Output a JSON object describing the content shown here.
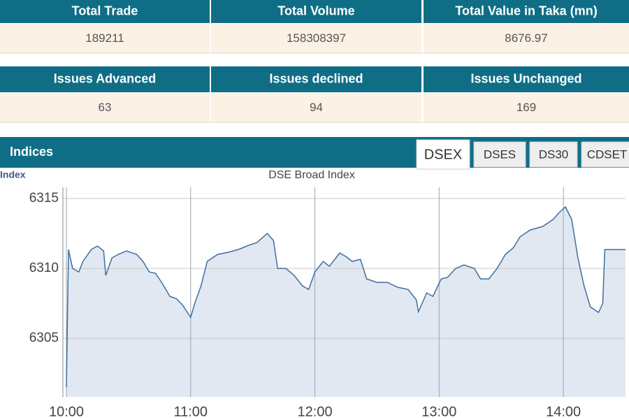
{
  "tables": [
    {
      "headers": [
        "Total Trade",
        "Total Volume",
        "Total Value in Taka (mn)"
      ],
      "values": [
        189211,
        158308397,
        8676.97
      ]
    },
    {
      "headers": [
        "Issues Advanced",
        "Issues declined",
        "Issues Unchanged"
      ],
      "values": [
        63,
        94,
        169
      ]
    }
  ],
  "section_title": "Indices",
  "tabs": [
    "DSEX",
    "DSES",
    "DS30",
    "CDSET"
  ],
  "chart_data": {
    "type": "line",
    "title": "DSE Broad Index",
    "y_label": "Index",
    "x": [
      "10:00",
      "10:01",
      "10:03",
      "10:06",
      "10:08",
      "10:12",
      "10:15",
      "10:18",
      "10:19",
      "10:22",
      "10:25",
      "10:29",
      "10:34",
      "10:37",
      "10:40",
      "10:43",
      "10:46",
      "10:50",
      "10:53",
      "10:56",
      "11:00",
      "11:02",
      "11:05",
      "11:08",
      "11:13",
      "11:18",
      "11:23",
      "11:28",
      "11:32",
      "11:37",
      "11:40",
      "11:42",
      "11:46",
      "11:50",
      "11:54",
      "11:57",
      "12:00",
      "12:04",
      "12:07",
      "12:12",
      "12:15",
      "12:18",
      "12:22",
      "12:25",
      "12:30",
      "12:35",
      "12:40",
      "12:45",
      "12:49",
      "12:50",
      "12:54",
      "12:57",
      "13:01",
      "13:04",
      "13:08",
      "13:12",
      "13:17",
      "13:20",
      "13:24",
      "13:28",
      "13:32",
      "13:36",
      "13:39",
      "13:44",
      "13:50",
      "13:55",
      "13:58",
      "14:01",
      "14:04",
      "14:07",
      "14:10",
      "14:13",
      "14:17",
      "14:19",
      "14:20",
      "14:30"
    ],
    "values": [
      6301.5,
      6311.35,
      6310.0,
      6309.75,
      6310.5,
      6311.35,
      6311.6,
      6311.25,
      6309.5,
      6310.75,
      6311.0,
      6311.25,
      6311.0,
      6310.5,
      6309.75,
      6309.65,
      6309.0,
      6308.0,
      6307.85,
      6307.4,
      6306.5,
      6307.5,
      6308.75,
      6310.5,
      6311.0,
      6311.15,
      6311.35,
      6311.65,
      6311.85,
      6312.5,
      6312.0,
      6310.0,
      6310.0,
      6309.5,
      6308.75,
      6308.5,
      6309.75,
      6310.5,
      6310.15,
      6311.1,
      6310.85,
      6310.5,
      6310.65,
      6309.25,
      6309.0,
      6309.0,
      6308.65,
      6308.5,
      6307.75,
      6306.9,
      6308.25,
      6308.0,
      6309.25,
      6309.35,
      6310.0,
      6310.25,
      6310.0,
      6309.25,
      6309.25,
      6310.0,
      6311.0,
      6311.5,
      6312.25,
      6312.75,
      6313.0,
      6313.5,
      6314.0,
      6314.4,
      6313.5,
      6310.75,
      6308.75,
      6307.25,
      6306.85,
      6307.5,
      6311.35,
      6311.35
    ],
    "color": "#3f6f9f",
    "fill_color": "#e1e8f2",
    "xlim": [
      "10:00",
      "14:30"
    ],
    "xticks": [
      "10:00",
      "11:00",
      "12:00",
      "13:00",
      "14:00"
    ],
    "ylim": [
      6300.8,
      6315.8
    ],
    "yticks": [
      6305,
      6310,
      6315
    ],
    "grid": true
  }
}
